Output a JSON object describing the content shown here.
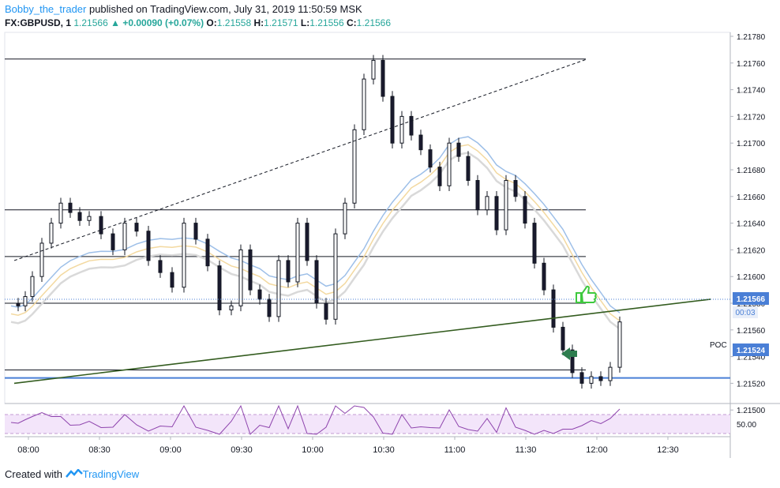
{
  "header": {
    "author": "Bobby_the_trader",
    "published_text": " published on TradingView.com, July 31, 2019 11:50:59 MSK",
    "symbol": "FX:GBPUSD, 1",
    "last": "1.21566",
    "change": "+0.00090 (+0.07%)",
    "o_label": "O:",
    "o_value": "1.21558",
    "h_label": "H:",
    "h_value": "1.21571",
    "l_label": "L:",
    "l_value": "1.21556",
    "c_label": "C:",
    "c_value": "1.21566"
  },
  "footer": {
    "created_with": "Created with",
    "brand": "TradingView"
  },
  "colors": {
    "candle_up": "#ffffff",
    "candle_down": "#1a1a2e",
    "wick": "#131722",
    "ma_blue": "#9dbfe8",
    "ma_gold": "#f3d9a0",
    "ma_grey": "#d9d9d9",
    "trendline": "#335c1f",
    "poc": "#4a7fd6",
    "rsi": "#8e44ad",
    "rsi_band": "#f3e5fa",
    "accent_green": "#3ec93e"
  },
  "icons": {
    "thumb": "thumbs-up-icon",
    "arrow": "left-arrow-icon",
    "brand_logo": "tradingview-logo-icon"
  },
  "chart_data": {
    "type": "candlestick",
    "symbol": "FX:GBPUSD",
    "timeframe": "1",
    "ylim": [
      1.21478,
      1.21788
    ],
    "y_ticks": [
      "1.21500",
      "1.21520",
      "1.21540",
      "1.21560",
      "1.21580",
      "1.21600",
      "1.21620",
      "1.21640",
      "1.21660",
      "1.21680",
      "1.21700",
      "1.21720",
      "1.21740",
      "1.21760",
      "1.21780"
    ],
    "x_ticks": [
      "08:00",
      "08:30",
      "09:00",
      "09:30",
      "10:00",
      "10:30",
      "11:00",
      "11:30",
      "12:00",
      "12:30"
    ],
    "last_price_label": "1.21566",
    "countdown": "00:03",
    "poc_label": "POC",
    "poc_price_label": "1.21524",
    "poc_price": 1.21524,
    "horizontal_levels": [
      1.21763,
      1.2165,
      1.21615,
      1.2158,
      1.2153
    ],
    "trendlines": [
      {
        "style": "solid",
        "from": [
          "07:54",
          1.2152
        ],
        "to": [
          "12:48",
          1.21583
        ]
      },
      {
        "style": "dashed",
        "from": [
          "07:54",
          1.21612
        ],
        "to": [
          "11:56",
          1.21763
        ]
      }
    ],
    "rsi": {
      "level_label": "50.00",
      "upper": 70,
      "lower": 30
    }
  }
}
